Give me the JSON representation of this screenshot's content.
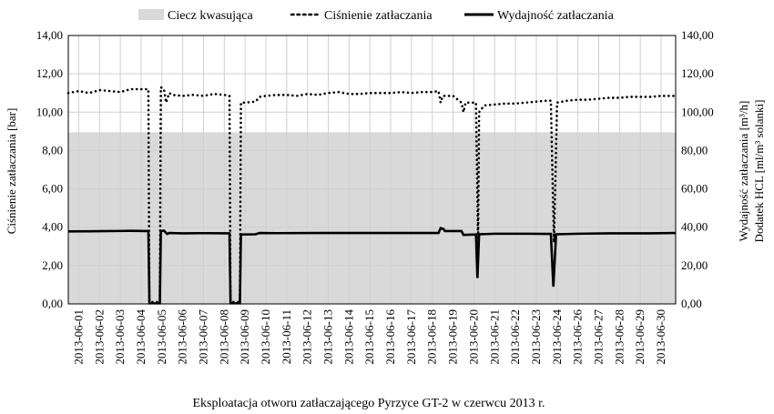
{
  "chart_data": {
    "type": "line",
    "xlabel": "Eksploatacja otworu zatłaczającego Pyrzyce GT-2 w czerwcu 2013 r.",
    "ylabel_left": "Ciśnienie zatłaczania [bar]",
    "ylabel_right_line1": "Wydajność zatłaczania [m³/h]",
    "ylabel_right_line2": "Dodatek HCL [ml/m³ solanki]",
    "ylim_left": [
      0,
      14
    ],
    "ylim_right": [
      0,
      140
    ],
    "left_ticks": [
      "0,00",
      "2,00",
      "4,00",
      "6,00",
      "8,00",
      "10,00",
      "12,00",
      "14,00"
    ],
    "right_ticks": [
      "0,00",
      "20,00",
      "40,00",
      "60,00",
      "80,00",
      "100,00",
      "120,00",
      "140,00"
    ],
    "categories": [
      "2013-06-01",
      "2013-06-02",
      "2013-06-03",
      "2013-06-04",
      "2013-06-05",
      "2013-06-06",
      "2013-06-07",
      "2013-06-08",
      "2013-06-09",
      "2013-06-10",
      "2013-06-11",
      "2013-06-12",
      "2013-06-13",
      "2013-06-14",
      "2013-06-15",
      "2013-06-16",
      "2013-06-17",
      "2013-06-18",
      "2013-06-19",
      "2013-06-20",
      "2013-06-21",
      "2013-06-22",
      "2013-06-23",
      "2013-06-24",
      "2013-06-26",
      "2013-06-27",
      "2013-06-28",
      "2013-06-29",
      "2013-06-30"
    ],
    "x_range": [
      0,
      29.2
    ],
    "legend_position": "top",
    "grid": true,
    "colors": {
      "fluid": "#d9d9d9",
      "line": "#000000",
      "grid": "#d0d0d0"
    },
    "series": [
      {
        "name": "Ciecz kwasująca",
        "kind": "area",
        "axis": "left",
        "points": [
          [
            0,
            8.95
          ],
          [
            29.2,
            8.95
          ]
        ]
      },
      {
        "name": "Ciśnienie zatłaczania",
        "kind": "dotted",
        "axis": "left",
        "points": [
          [
            0,
            11.0
          ],
          [
            0.5,
            11.1
          ],
          [
            1,
            11.0
          ],
          [
            1.5,
            11.15
          ],
          [
            2,
            11.1
          ],
          [
            2.5,
            11.05
          ],
          [
            3,
            11.2
          ],
          [
            3.5,
            11.2
          ],
          [
            3.85,
            11.2
          ],
          [
            3.9,
            0.1
          ],
          [
            4.4,
            0.1
          ],
          [
            4.45,
            11.3
          ],
          [
            4.6,
            11.2
          ],
          [
            4.7,
            10.5
          ],
          [
            4.85,
            11.0
          ],
          [
            5.0,
            10.9
          ],
          [
            5.5,
            10.85
          ],
          [
            6,
            10.9
          ],
          [
            6.5,
            10.85
          ],
          [
            7,
            10.95
          ],
          [
            7.5,
            10.9
          ],
          [
            7.75,
            10.85
          ],
          [
            7.8,
            0.1
          ],
          [
            8.25,
            0.1
          ],
          [
            8.3,
            10.5
          ],
          [
            8.5,
            10.5
          ],
          [
            9,
            10.55
          ],
          [
            9.2,
            10.8
          ],
          [
            9.5,
            10.85
          ],
          [
            10,
            10.9
          ],
          [
            10.5,
            10.9
          ],
          [
            11,
            10.85
          ],
          [
            11.5,
            10.95
          ],
          [
            12,
            10.9
          ],
          [
            12.5,
            11.0
          ],
          [
            13,
            11.05
          ],
          [
            13.5,
            10.95
          ],
          [
            14,
            10.95
          ],
          [
            14.5,
            11.0
          ],
          [
            15,
            11.0
          ],
          [
            15.5,
            11.0
          ],
          [
            16,
            11.05
          ],
          [
            16.5,
            11.0
          ],
          [
            17,
            11.05
          ],
          [
            17.5,
            11.05
          ],
          [
            17.8,
            11.1
          ],
          [
            17.9,
            10.5
          ],
          [
            18.0,
            10.85
          ],
          [
            18.5,
            10.85
          ],
          [
            18.9,
            10.5
          ],
          [
            19.0,
            10.0
          ],
          [
            19.1,
            10.5
          ],
          [
            19.6,
            10.5
          ],
          [
            19.7,
            3.2
          ],
          [
            19.75,
            10.0
          ],
          [
            20,
            10.35
          ],
          [
            20.5,
            10.4
          ],
          [
            21,
            10.45
          ],
          [
            21.5,
            10.45
          ],
          [
            22,
            10.5
          ],
          [
            22.5,
            10.55
          ],
          [
            23,
            10.6
          ],
          [
            23.2,
            10.6
          ],
          [
            23.35,
            3.2
          ],
          [
            23.5,
            10.5
          ],
          [
            24,
            10.6
          ],
          [
            24.5,
            10.65
          ],
          [
            25,
            10.65
          ],
          [
            25.5,
            10.7
          ],
          [
            26,
            10.75
          ],
          [
            26.5,
            10.75
          ],
          [
            27,
            10.8
          ],
          [
            27.5,
            10.8
          ],
          [
            28,
            10.8
          ],
          [
            28.5,
            10.85
          ],
          [
            29.2,
            10.85
          ]
        ]
      },
      {
        "name": "Wydajność zatłaczania",
        "kind": "solid",
        "axis": "right",
        "points": [
          [
            0,
            37.8
          ],
          [
            1,
            37.9
          ],
          [
            2,
            38.0
          ],
          [
            3,
            38.1
          ],
          [
            3.85,
            38.0
          ],
          [
            3.9,
            0.3
          ],
          [
            4.4,
            0.3
          ],
          [
            4.45,
            38.0
          ],
          [
            4.6,
            38.2
          ],
          [
            4.75,
            36.5
          ],
          [
            4.85,
            37.0
          ],
          [
            5.5,
            36.8
          ],
          [
            6.5,
            36.9
          ],
          [
            7.75,
            36.8
          ],
          [
            7.8,
            0.3
          ],
          [
            8.25,
            0.3
          ],
          [
            8.3,
            36.2
          ],
          [
            9,
            36.3
          ],
          [
            9.2,
            37.0
          ],
          [
            10,
            36.9
          ],
          [
            12,
            37.0
          ],
          [
            14,
            37.0
          ],
          [
            16,
            37.0
          ],
          [
            17.8,
            37.0
          ],
          [
            17.9,
            39.5
          ],
          [
            18.05,
            39.0
          ],
          [
            18.1,
            38.0
          ],
          [
            18.9,
            38.0
          ],
          [
            19.0,
            36.0
          ],
          [
            19.6,
            36.2
          ],
          [
            19.67,
            13.5
          ],
          [
            19.75,
            36.3
          ],
          [
            20.5,
            36.6
          ],
          [
            22,
            36.6
          ],
          [
            23.2,
            36.5
          ],
          [
            23.32,
            9.0
          ],
          [
            23.45,
            36.3
          ],
          [
            24.5,
            36.6
          ],
          [
            26,
            36.8
          ],
          [
            28,
            36.8
          ],
          [
            29.2,
            37.0
          ]
        ]
      }
    ]
  }
}
